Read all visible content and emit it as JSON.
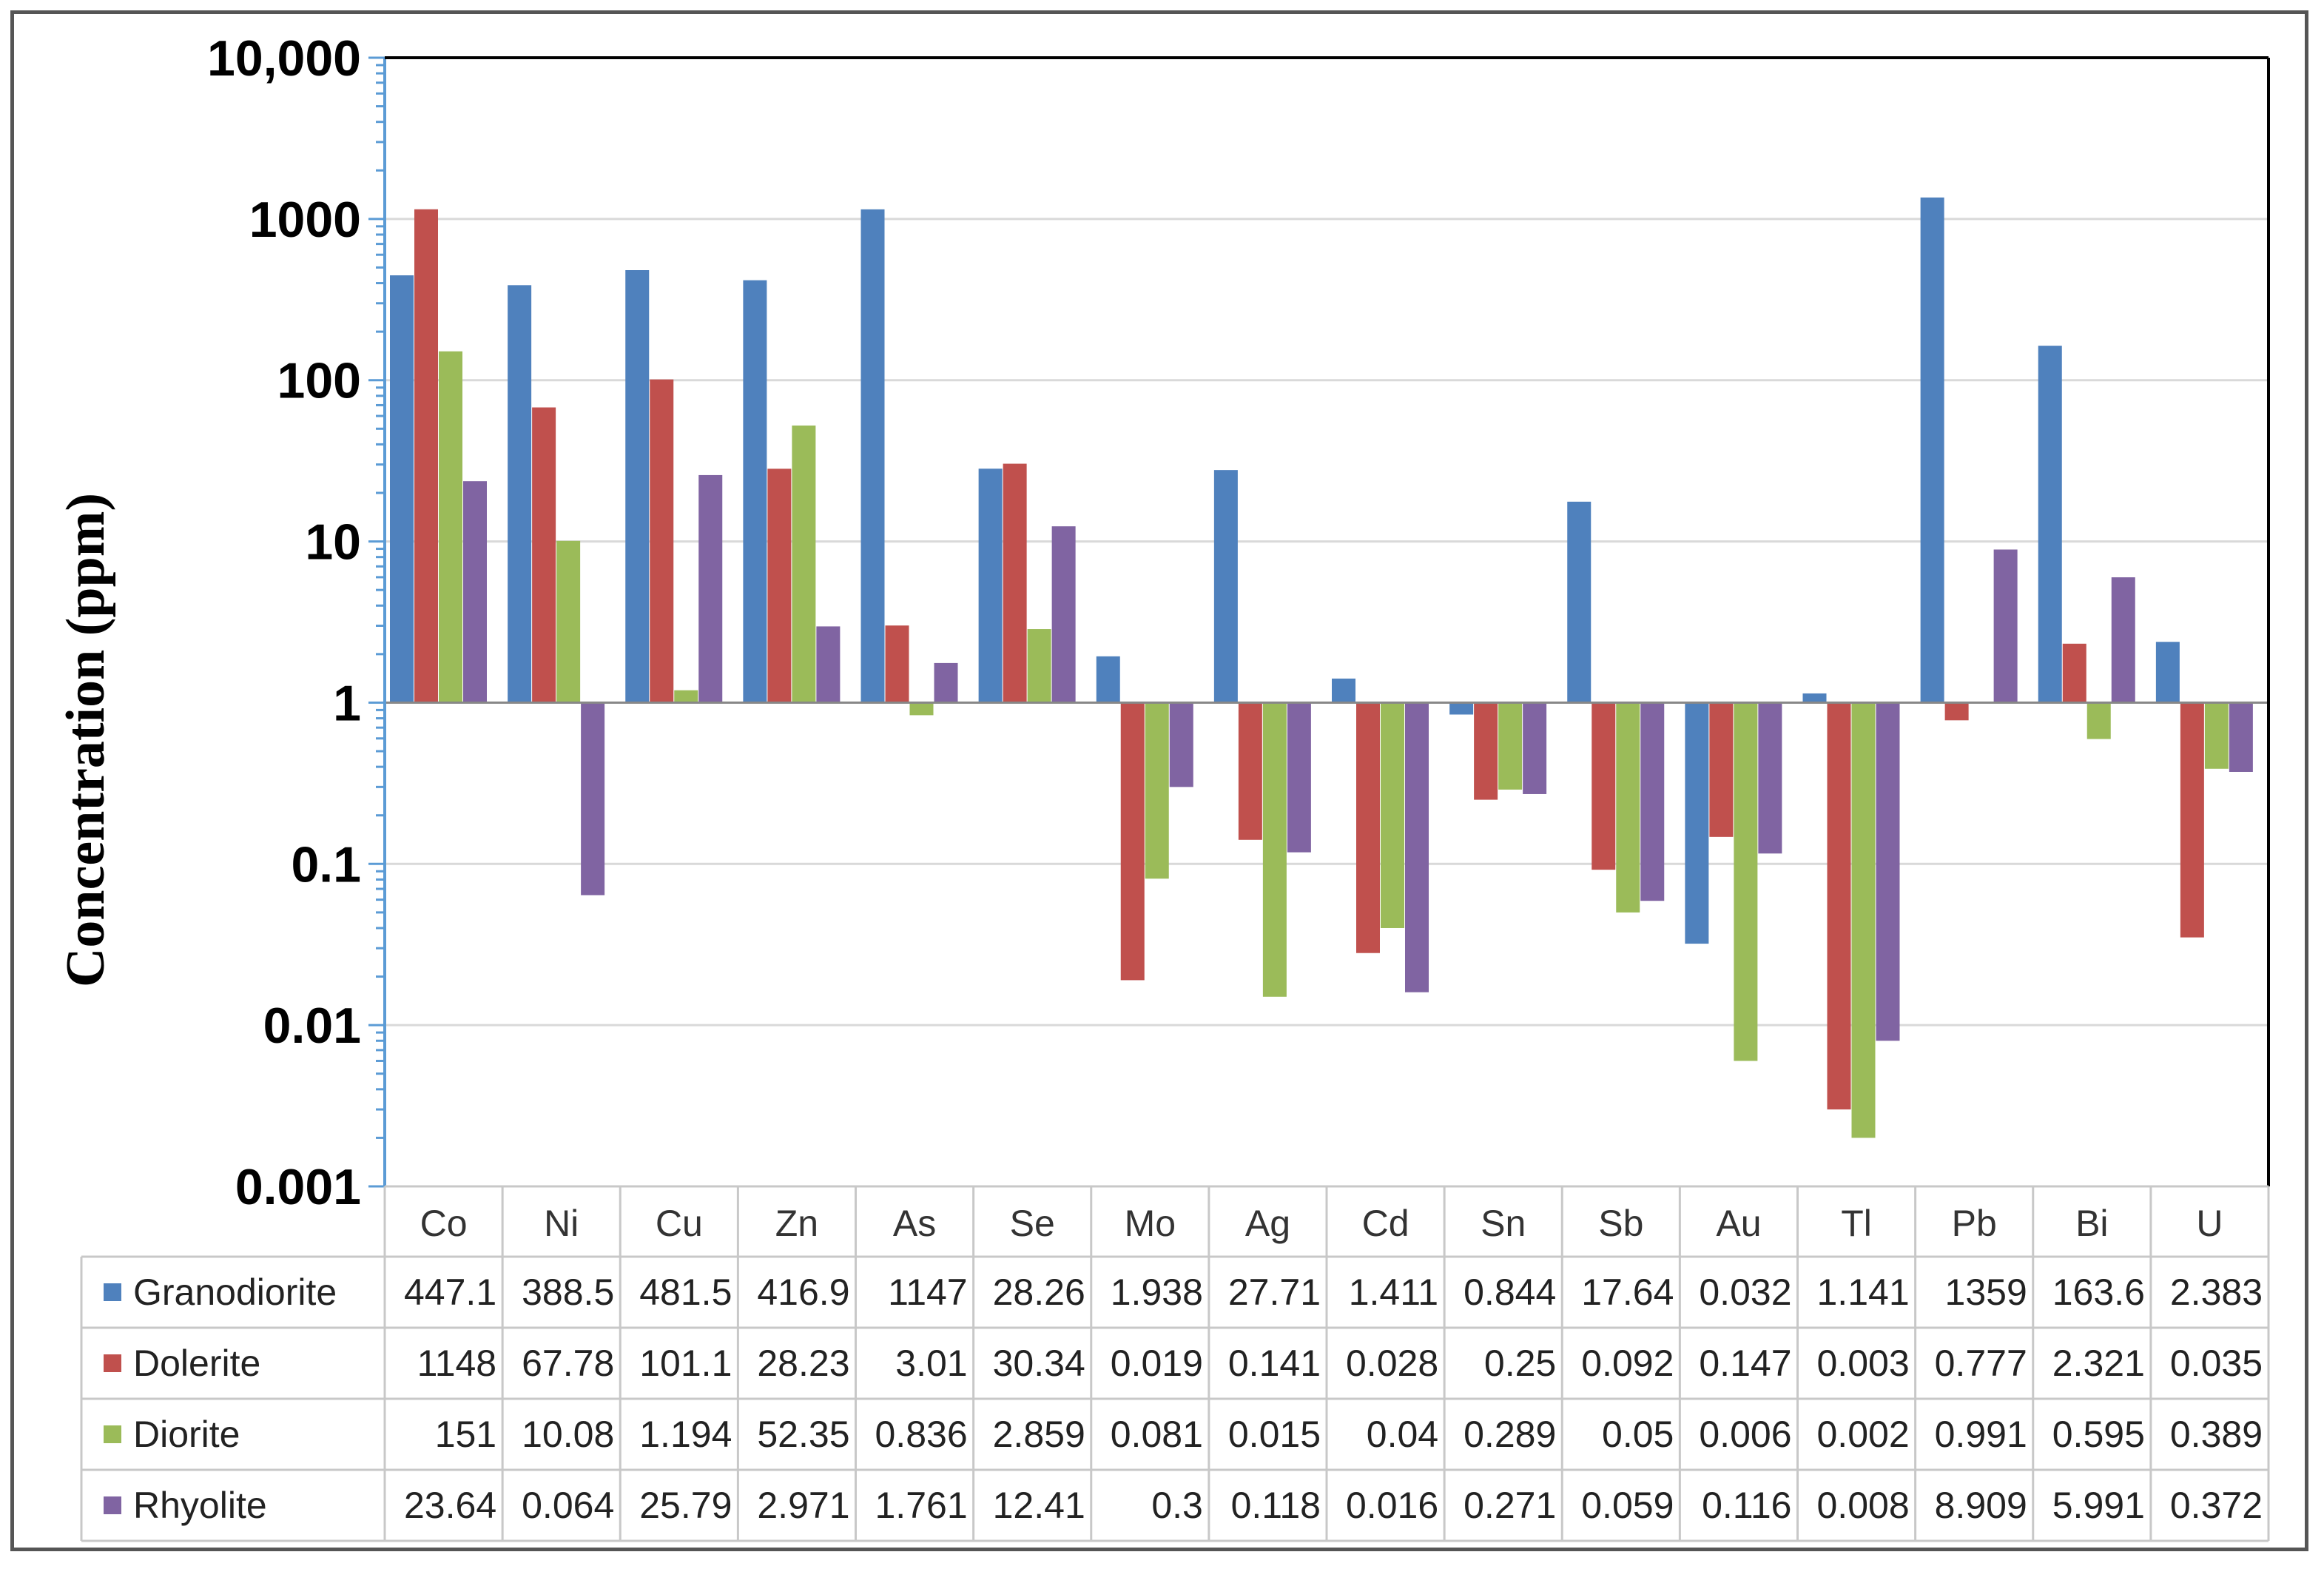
{
  "chart_data": {
    "type": "bar",
    "ylabel": "Concentration (ppm)",
    "yscale": "log",
    "ylim": [
      0.001,
      10000
    ],
    "baseline": 1,
    "yticks": [
      "0.001",
      "0.01",
      "0.1",
      "1",
      "10",
      "100",
      "1000",
      "10,000"
    ],
    "ytick_values": [
      0.001,
      0.01,
      0.1,
      1,
      10,
      100,
      1000,
      10000
    ],
    "grid": true,
    "legend": "data-table",
    "categories": [
      "Co",
      "Ni",
      "Cu",
      "Zn",
      "As",
      "Se",
      "Mo",
      "Ag",
      "Cd",
      "Sn",
      "Sb",
      "Au",
      "Tl",
      "Pb",
      "Bi",
      "U"
    ],
    "series": [
      {
        "name": "Granodiorite",
        "color": "#4f81bd",
        "values": [
          447.1,
          388.5,
          481.5,
          416.9,
          1147,
          28.26,
          1.938,
          27.71,
          1.411,
          0.844,
          17.64,
          0.032,
          1.141,
          1359,
          163.6,
          2.383
        ],
        "labels": [
          "447.1",
          "388.5",
          "481.5",
          "416.9",
          "1147",
          "28.26",
          "1.938",
          "27.71",
          "1.411",
          "0.844",
          "17.64",
          "0.032",
          "1.141",
          "1359",
          "163.6",
          "2.383"
        ]
      },
      {
        "name": "Dolerite",
        "color": "#c0504d",
        "values": [
          1148,
          67.78,
          101.1,
          28.23,
          3.01,
          30.34,
          0.019,
          0.141,
          0.028,
          0.25,
          0.092,
          0.147,
          0.003,
          0.777,
          2.321,
          0.035
        ],
        "labels": [
          "1148",
          "67.78",
          "101.1",
          "28.23",
          "3.01",
          "30.34",
          "0.019",
          "0.141",
          "0.028",
          "0.25",
          "0.092",
          "0.147",
          "0.003",
          "0.777",
          "2.321",
          "0.035"
        ]
      },
      {
        "name": "Diorite",
        "color": "#9bbb59",
        "values": [
          151,
          10.08,
          1.194,
          52.35,
          0.836,
          2.859,
          0.081,
          0.015,
          0.04,
          0.289,
          0.05,
          0.006,
          0.002,
          0.991,
          0.595,
          0.389
        ],
        "labels": [
          "151",
          "10.08",
          "1.194",
          "52.35",
          "0.836",
          "2.859",
          "0.081",
          "0.015",
          "0.04",
          "0.289",
          "0.05",
          "0.006",
          "0.002",
          "0.991",
          "0.595",
          "0.389"
        ]
      },
      {
        "name": "Rhyolite",
        "color": "#8064a2",
        "values": [
          23.64,
          0.064,
          25.79,
          2.971,
          1.761,
          12.41,
          0.3,
          0.118,
          0.016,
          0.271,
          0.059,
          0.116,
          0.008,
          8.909,
          5.991,
          0.372
        ],
        "labels": [
          "23.64",
          "0.064",
          "25.79",
          "2.971",
          "1.761",
          "12.41",
          "0.3",
          "0.118",
          "0.016",
          "0.271",
          "0.059",
          "0.116",
          "0.008",
          "8.909",
          "5.991",
          "0.372"
        ]
      }
    ]
  }
}
